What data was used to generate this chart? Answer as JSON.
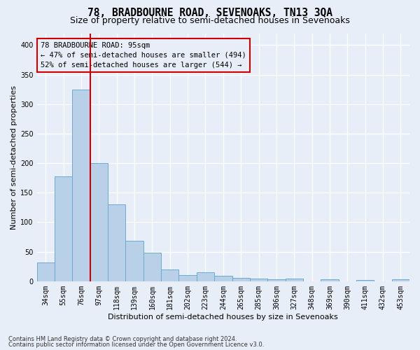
{
  "title": "78, BRADBOURNE ROAD, SEVENOAKS, TN13 3QA",
  "subtitle": "Size of property relative to semi-detached houses in Sevenoaks",
  "xlabel": "Distribution of semi-detached houses by size in Sevenoaks",
  "ylabel": "Number of semi-detached properties",
  "footnote1": "Contains HM Land Registry data © Crown copyright and database right 2024.",
  "footnote2": "Contains public sector information licensed under the Open Government Licence v3.0.",
  "categories": [
    "34sqm",
    "55sqm",
    "76sqm",
    "97sqm",
    "118sqm",
    "139sqm",
    "160sqm",
    "181sqm",
    "202sqm",
    "223sqm",
    "244sqm",
    "265sqm",
    "285sqm",
    "306sqm",
    "327sqm",
    "348sqm",
    "369sqm",
    "390sqm",
    "411sqm",
    "432sqm",
    "453sqm"
  ],
  "values": [
    32,
    178,
    325,
    200,
    130,
    68,
    48,
    20,
    11,
    15,
    9,
    6,
    5,
    3,
    4,
    0,
    3,
    0,
    2,
    0,
    3
  ],
  "bar_color": "#b8d0e8",
  "bar_edge_color": "#6aabd2",
  "property_line_x": 2.5,
  "annotation_line": "78 BRADBOURNE ROAD: 95sqm",
  "annotation_line2": "← 47% of semi-detached houses are smaller (494)",
  "annotation_line3": "52% of semi-detached houses are larger (544) →",
  "ylim": [
    0,
    420
  ],
  "yticks": [
    0,
    50,
    100,
    150,
    200,
    250,
    300,
    350,
    400
  ],
  "bg_color": "#e8eef7",
  "grid_color": "#ffffff",
  "title_fontsize": 10.5,
  "subtitle_fontsize": 9,
  "axis_label_fontsize": 8,
  "tick_fontsize": 7,
  "footnote_fontsize": 6
}
